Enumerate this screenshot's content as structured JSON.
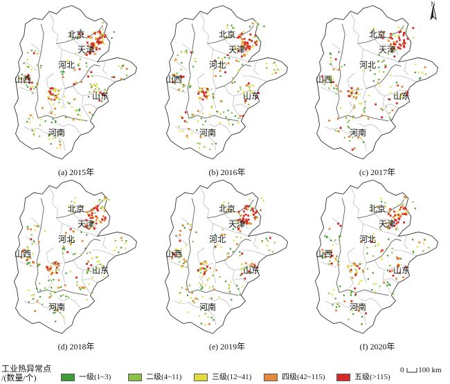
{
  "panels": [
    {
      "caption": "(a) 2015年"
    },
    {
      "caption": "(b) 2016年"
    },
    {
      "caption": "(c) 2017年"
    },
    {
      "caption": "(d) 2018年"
    },
    {
      "caption": "(e) 2019年"
    },
    {
      "caption": "(f) 2020年"
    }
  ],
  "place_labels": {
    "beijing": "北京",
    "tianjin": "天津",
    "hebei": "河北",
    "shanxi": "山西",
    "shandong": "山东",
    "henan": "河南"
  },
  "north": "N",
  "legend": {
    "title_line1": "工业热异常点",
    "title_line2": "/(数量/个)",
    "items": [
      {
        "label": "一级(1~3)",
        "color": "#3f9c35"
      },
      {
        "label": "二级(4~11)",
        "color": "#8cc04a"
      },
      {
        "label": "三级(12~41)",
        "color": "#e4dc3c"
      },
      {
        "label": "四级(42~115)",
        "color": "#e38a3c"
      },
      {
        "label": "五级(>115)",
        "color": "#d52b27"
      }
    ]
  },
  "scale": {
    "zero": "0",
    "distance": "100 km"
  }
}
